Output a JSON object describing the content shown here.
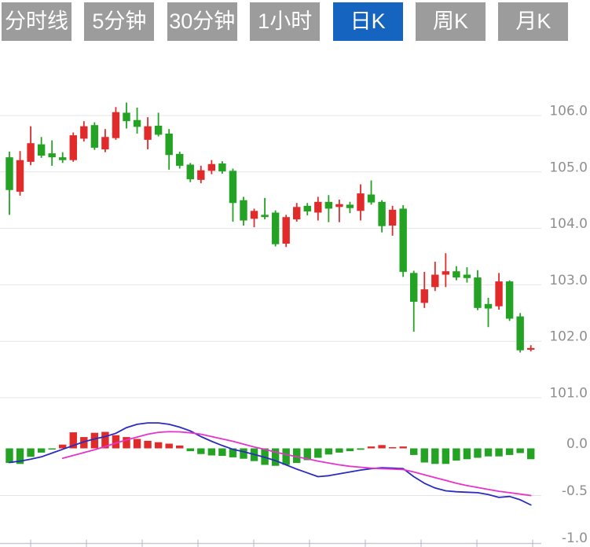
{
  "toolbar": {
    "tabs": [
      {
        "key": "tab-timeline",
        "label": "分时线",
        "active": false
      },
      {
        "key": "tab-5min",
        "label": "5分钟",
        "active": false
      },
      {
        "key": "tab-30min",
        "label": "30分钟",
        "active": false
      },
      {
        "key": "tab-1hour",
        "label": "1小时",
        "active": false
      },
      {
        "key": "tab-daily-k",
        "label": "日K",
        "active": true
      },
      {
        "key": "tab-weekly-k",
        "label": "周K",
        "active": false
      },
      {
        "key": "tab-monthly-k",
        "label": "月K",
        "active": false
      }
    ]
  },
  "colors": {
    "up": "#e12b2b",
    "down": "#23a223",
    "dif_line": "#2b2bbf",
    "dea_line": "#e633cc",
    "tab_bg": "#9c9c9c",
    "tab_active_bg": "#1565c0",
    "tab_text": "#ffffff",
    "grid": "#e4e4e4",
    "axis_text": "#8f8f8f",
    "axis_line": "#c9c9d2",
    "axis_tick": "#b4b4c6"
  },
  "chart_data": {
    "type": "candlestick",
    "indicator": "MACD",
    "legend_position": "none",
    "grid": true,
    "price_axis": {
      "side": "right",
      "ticks": [
        106.0,
        105.0,
        104.0,
        103.0,
        102.0,
        101.0
      ],
      "range": [
        100.8,
        106.5
      ]
    },
    "macd_axis": {
      "side": "right",
      "ticks": [
        0.0,
        -0.5,
        -1.0
      ],
      "range": [
        0.35,
        -1.0
      ]
    },
    "candles": [
      {
        "o": 105.26,
        "h": 105.36,
        "l": 104.24,
        "c": 104.68
      },
      {
        "o": 104.65,
        "h": 105.37,
        "l": 104.58,
        "c": 105.21
      },
      {
        "o": 105.18,
        "h": 105.81,
        "l": 105.12,
        "c": 105.51
      },
      {
        "o": 105.49,
        "h": 105.62,
        "l": 105.25,
        "c": 105.29
      },
      {
        "o": 105.33,
        "h": 105.56,
        "l": 105.11,
        "c": 105.26
      },
      {
        "o": 105.26,
        "h": 105.35,
        "l": 105.16,
        "c": 105.21
      },
      {
        "o": 105.21,
        "h": 105.7,
        "l": 105.18,
        "c": 105.65
      },
      {
        "o": 105.59,
        "h": 105.9,
        "l": 105.54,
        "c": 105.81
      },
      {
        "o": 105.83,
        "h": 105.88,
        "l": 105.39,
        "c": 105.43
      },
      {
        "o": 105.4,
        "h": 105.76,
        "l": 105.35,
        "c": 105.62
      },
      {
        "o": 105.6,
        "h": 106.15,
        "l": 105.57,
        "c": 106.06
      },
      {
        "o": 106.05,
        "h": 106.23,
        "l": 105.77,
        "c": 105.9
      },
      {
        "o": 105.92,
        "h": 106.14,
        "l": 105.68,
        "c": 105.8
      },
      {
        "o": 105.57,
        "h": 105.97,
        "l": 105.4,
        "c": 105.81
      },
      {
        "o": 105.82,
        "h": 106.05,
        "l": 105.63,
        "c": 105.66
      },
      {
        "o": 105.68,
        "h": 105.76,
        "l": 105.04,
        "c": 105.3
      },
      {
        "o": 105.32,
        "h": 105.36,
        "l": 105.06,
        "c": 105.11
      },
      {
        "o": 105.13,
        "h": 105.16,
        "l": 104.82,
        "c": 104.87
      },
      {
        "o": 104.86,
        "h": 105.11,
        "l": 104.8,
        "c": 105.03
      },
      {
        "o": 105.02,
        "h": 105.21,
        "l": 104.96,
        "c": 105.14
      },
      {
        "o": 105.15,
        "h": 105.19,
        "l": 104.97,
        "c": 105.01
      },
      {
        "o": 105.02,
        "h": 105.06,
        "l": 104.12,
        "c": 104.45
      },
      {
        "o": 104.5,
        "h": 104.56,
        "l": 104.05,
        "c": 104.14
      },
      {
        "o": 104.17,
        "h": 104.35,
        "l": 104.02,
        "c": 104.31
      },
      {
        "o": 104.24,
        "h": 104.54,
        "l": 104.16,
        "c": 104.2
      },
      {
        "o": 104.28,
        "h": 104.32,
        "l": 103.68,
        "c": 103.72
      },
      {
        "o": 103.73,
        "h": 104.24,
        "l": 103.67,
        "c": 104.2
      },
      {
        "o": 104.16,
        "h": 104.45,
        "l": 104.12,
        "c": 104.38
      },
      {
        "o": 104.4,
        "h": 104.45,
        "l": 104.23,
        "c": 104.3
      },
      {
        "o": 104.28,
        "h": 104.56,
        "l": 104.14,
        "c": 104.47
      },
      {
        "o": 104.47,
        "h": 104.59,
        "l": 104.11,
        "c": 104.35
      },
      {
        "o": 104.38,
        "h": 104.51,
        "l": 104.11,
        "c": 104.43
      },
      {
        "o": 104.42,
        "h": 104.47,
        "l": 104.27,
        "c": 104.36
      },
      {
        "o": 104.31,
        "h": 104.78,
        "l": 104.14,
        "c": 104.62
      },
      {
        "o": 104.6,
        "h": 104.85,
        "l": 104.42,
        "c": 104.46
      },
      {
        "o": 104.47,
        "h": 104.5,
        "l": 103.93,
        "c": 104.04
      },
      {
        "o": 104.05,
        "h": 104.4,
        "l": 103.87,
        "c": 104.33
      },
      {
        "o": 104.35,
        "h": 104.41,
        "l": 103.14,
        "c": 103.23
      },
      {
        "o": 103.21,
        "h": 103.25,
        "l": 102.17,
        "c": 102.7
      },
      {
        "o": 102.68,
        "h": 103.23,
        "l": 102.59,
        "c": 102.92
      },
      {
        "o": 102.96,
        "h": 103.41,
        "l": 102.89,
        "c": 103.18
      },
      {
        "o": 103.18,
        "h": 103.56,
        "l": 102.96,
        "c": 103.24
      },
      {
        "o": 103.24,
        "h": 103.33,
        "l": 103.08,
        "c": 103.13
      },
      {
        "o": 103.18,
        "h": 103.31,
        "l": 103.04,
        "c": 103.12
      },
      {
        "o": 103.13,
        "h": 103.26,
        "l": 102.55,
        "c": 102.59
      },
      {
        "o": 102.66,
        "h": 102.77,
        "l": 102.25,
        "c": 102.58
      },
      {
        "o": 102.62,
        "h": 103.21,
        "l": 102.56,
        "c": 103.06
      },
      {
        "o": 103.06,
        "h": 103.08,
        "l": 102.36,
        "c": 102.4
      },
      {
        "o": 102.44,
        "h": 102.5,
        "l": 101.8,
        "c": 101.84
      },
      {
        "o": 101.85,
        "h": 101.93,
        "l": 101.82,
        "c": 101.88
      }
    ],
    "macd": {
      "histogram": [
        -0.155,
        -0.165,
        -0.09,
        -0.045,
        -0.005,
        0.04,
        0.17,
        0.12,
        0.165,
        0.175,
        0.14,
        0.12,
        0.1,
        0.08,
        0.065,
        0.05,
        0.03,
        -0.03,
        -0.06,
        -0.075,
        -0.08,
        -0.095,
        -0.11,
        -0.135,
        -0.175,
        -0.185,
        -0.175,
        -0.155,
        -0.125,
        -0.1,
        -0.065,
        -0.045,
        -0.03,
        -0.015,
        0.02,
        0.035,
        0.01,
        0.02,
        -0.07,
        -0.15,
        -0.165,
        -0.165,
        -0.13,
        -0.115,
        -0.1,
        -0.085,
        -0.085,
        -0.07,
        -0.05,
        -0.115
      ],
      "dif": [
        -0.15,
        -0.135,
        -0.115,
        -0.09,
        -0.05,
        -0.01,
        0.03,
        0.07,
        0.1,
        0.125,
        0.16,
        0.22,
        0.255,
        0.27,
        0.27,
        0.255,
        0.225,
        0.185,
        0.125,
        0.075,
        0.03,
        -0.01,
        -0.035,
        -0.065,
        -0.095,
        -0.13,
        -0.175,
        -0.22,
        -0.26,
        -0.3,
        -0.29,
        -0.27,
        -0.25,
        -0.23,
        -0.215,
        -0.205,
        -0.21,
        -0.215,
        -0.3,
        -0.37,
        -0.42,
        -0.45,
        -0.46,
        -0.465,
        -0.47,
        -0.49,
        -0.52,
        -0.51,
        -0.545,
        -0.6
      ],
      "dea": [
        null,
        null,
        null,
        null,
        null,
        -0.105,
        -0.075,
        -0.045,
        -0.015,
        0.02,
        0.055,
        0.09,
        0.12,
        0.15,
        0.17,
        0.177,
        0.175,
        0.165,
        0.15,
        0.125,
        0.1,
        0.075,
        0.045,
        0.015,
        -0.01,
        -0.04,
        -0.065,
        -0.09,
        -0.11,
        -0.135,
        -0.155,
        -0.175,
        -0.19,
        -0.2,
        -0.21,
        -0.215,
        -0.22,
        -0.225,
        -0.25,
        -0.28,
        -0.31,
        -0.34,
        -0.37,
        -0.395,
        -0.415,
        -0.435,
        -0.455,
        -0.47,
        -0.485,
        -0.5
      ]
    }
  }
}
